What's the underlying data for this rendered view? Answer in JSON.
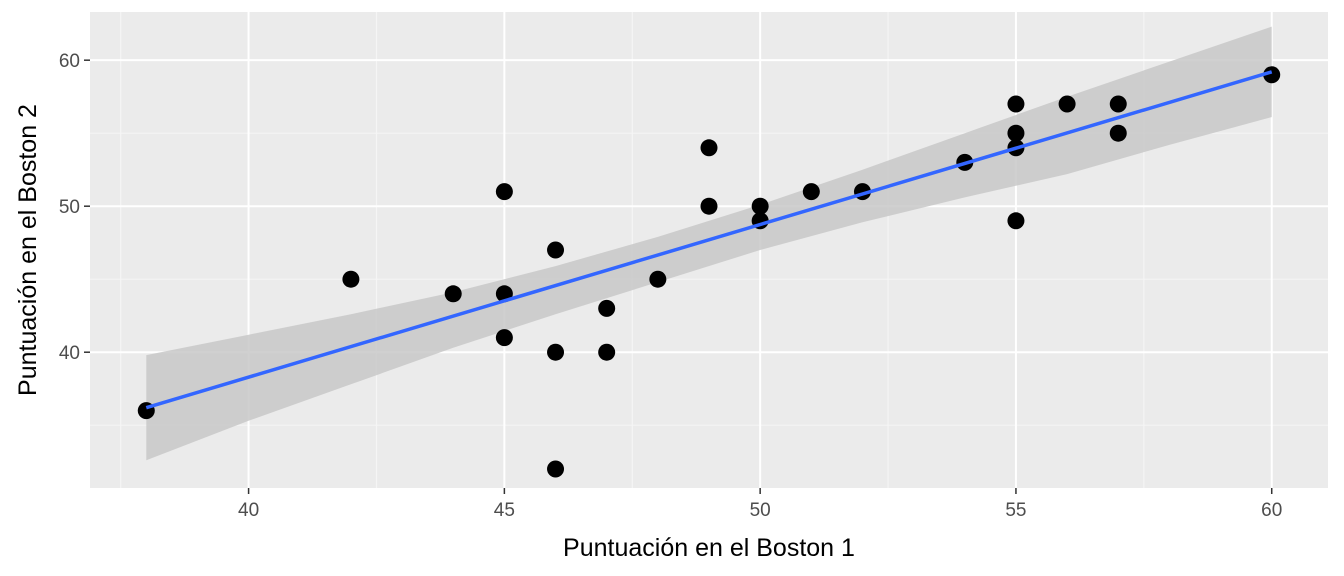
{
  "chart_data": {
    "type": "scatter",
    "title": "",
    "xlabel": "Puntuación en el Boston 1",
    "ylabel": "Puntuación en el Boston 2",
    "xlim": [
      36.9,
      61.1
    ],
    "ylim": [
      30.7,
      63.3
    ],
    "x_ticks": [
      40,
      45,
      50,
      55,
      60
    ],
    "y_ticks": [
      40,
      50,
      60
    ],
    "x_tick_labels": [
      "40",
      "45",
      "50",
      "55",
      "60"
    ],
    "y_tick_labels": [
      "40",
      "50",
      "60"
    ],
    "grid": true,
    "legend": "none",
    "points": [
      {
        "x": 38,
        "y": 36
      },
      {
        "x": 42,
        "y": 45
      },
      {
        "x": 44,
        "y": 44
      },
      {
        "x": 45,
        "y": 51
      },
      {
        "x": 45,
        "y": 44
      },
      {
        "x": 45,
        "y": 41
      },
      {
        "x": 46,
        "y": 47
      },
      {
        "x": 46,
        "y": 40
      },
      {
        "x": 46,
        "y": 32
      },
      {
        "x": 47,
        "y": 43
      },
      {
        "x": 47,
        "y": 40
      },
      {
        "x": 48,
        "y": 45
      },
      {
        "x": 49,
        "y": 54
      },
      {
        "x": 49,
        "y": 50
      },
      {
        "x": 50,
        "y": 50
      },
      {
        "x": 50,
        "y": 49
      },
      {
        "x": 51,
        "y": 51
      },
      {
        "x": 52,
        "y": 51
      },
      {
        "x": 54,
        "y": 53
      },
      {
        "x": 55,
        "y": 57
      },
      {
        "x": 55,
        "y": 55
      },
      {
        "x": 55,
        "y": 54
      },
      {
        "x": 55,
        "y": 49
      },
      {
        "x": 56,
        "y": 57
      },
      {
        "x": 57,
        "y": 57
      },
      {
        "x": 57,
        "y": 55
      },
      {
        "x": 60,
        "y": 59
      }
    ],
    "fit_line": {
      "method": "linear",
      "x": [
        38,
        60
      ],
      "y": [
        36.2,
        59.2
      ],
      "band": [
        {
          "x": 38,
          "lower": 32.6,
          "upper": 39.8
        },
        {
          "x": 40,
          "lower": 35.3,
          "upper": 41.2
        },
        {
          "x": 42,
          "lower": 37.8,
          "upper": 42.6
        },
        {
          "x": 44,
          "lower": 40.3,
          "upper": 44.1
        },
        {
          "x": 46,
          "lower": 42.6,
          "upper": 45.9
        },
        {
          "x": 48,
          "lower": 44.8,
          "upper": 47.9
        },
        {
          "x": 50,
          "lower": 47.0,
          "upper": 50.1
        },
        {
          "x": 52,
          "lower": 48.9,
          "upper": 52.5
        },
        {
          "x": 54,
          "lower": 50.6,
          "upper": 55.0
        },
        {
          "x": 56,
          "lower": 52.2,
          "upper": 57.5
        },
        {
          "x": 58,
          "lower": 54.2,
          "upper": 59.9
        },
        {
          "x": 60,
          "lower": 56.1,
          "upper": 62.3
        }
      ]
    },
    "colors": {
      "panel": "#ebebeb",
      "grid_major": "#ffffff",
      "grid_minor": "#f5f5f5",
      "point": "#000000",
      "line": "#3366ff",
      "band": "#c8c8c8",
      "tick": "#333333"
    }
  }
}
